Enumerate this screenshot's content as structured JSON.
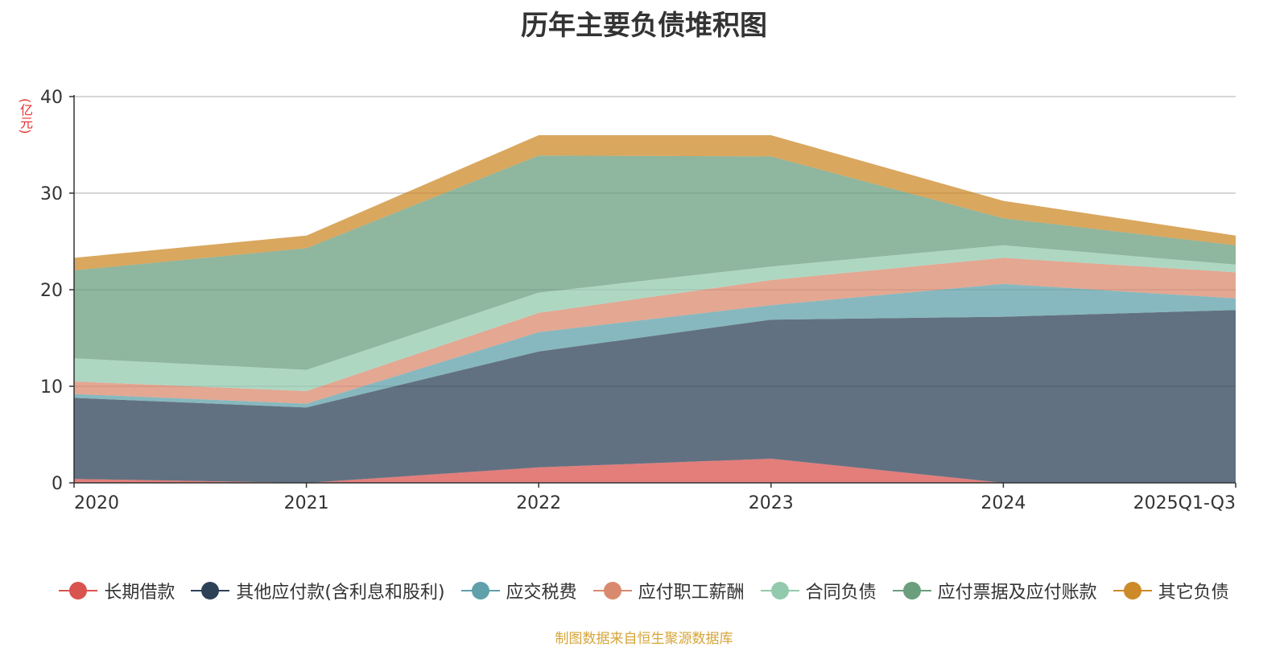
{
  "chart_data": {
    "type": "area",
    "stacked": true,
    "title": "历年主要负债堆积图",
    "unit_label": "(亿元)",
    "categories": [
      "2020",
      "2021",
      "2022",
      "2023",
      "2024",
      "2025Q1-Q3"
    ],
    "ylim": [
      0,
      40
    ],
    "yticks": [
      0,
      10,
      20,
      30,
      40
    ],
    "grid": true,
    "legend_position": "bottom",
    "series": [
      {
        "name": "长期借款",
        "color": "#d9534f",
        "values": [
          0.4,
          0.0,
          1.6,
          2.5,
          0.0,
          0.0
        ]
      },
      {
        "name": "其他应付款(含利息和股利)",
        "color": "#2e4257",
        "values": [
          8.4,
          7.8,
          12.0,
          14.4,
          17.2,
          17.9
        ]
      },
      {
        "name": "应交税费",
        "color": "#5fa0aa",
        "values": [
          0.4,
          0.4,
          2.0,
          1.5,
          3.4,
          1.2
        ]
      },
      {
        "name": "应付职工薪酬",
        "color": "#d98a6e",
        "values": [
          1.3,
          1.3,
          2.0,
          2.6,
          2.7,
          2.7
        ]
      },
      {
        "name": "合同负债",
        "color": "#93c9ad",
        "values": [
          2.4,
          2.2,
          2.1,
          1.4,
          1.3,
          0.8
        ]
      },
      {
        "name": "应付票据及应付账款",
        "color": "#6a9e7d",
        "values": [
          9.1,
          12.6,
          14.2,
          11.4,
          2.8,
          2.0
        ]
      },
      {
        "name": "其它负债",
        "color": "#cc8a28",
        "values": [
          1.3,
          1.3,
          2.1,
          2.2,
          1.8,
          1.0
        ]
      }
    ]
  },
  "footer": {
    "source": "制图数据来自恒生聚源数据库"
  }
}
